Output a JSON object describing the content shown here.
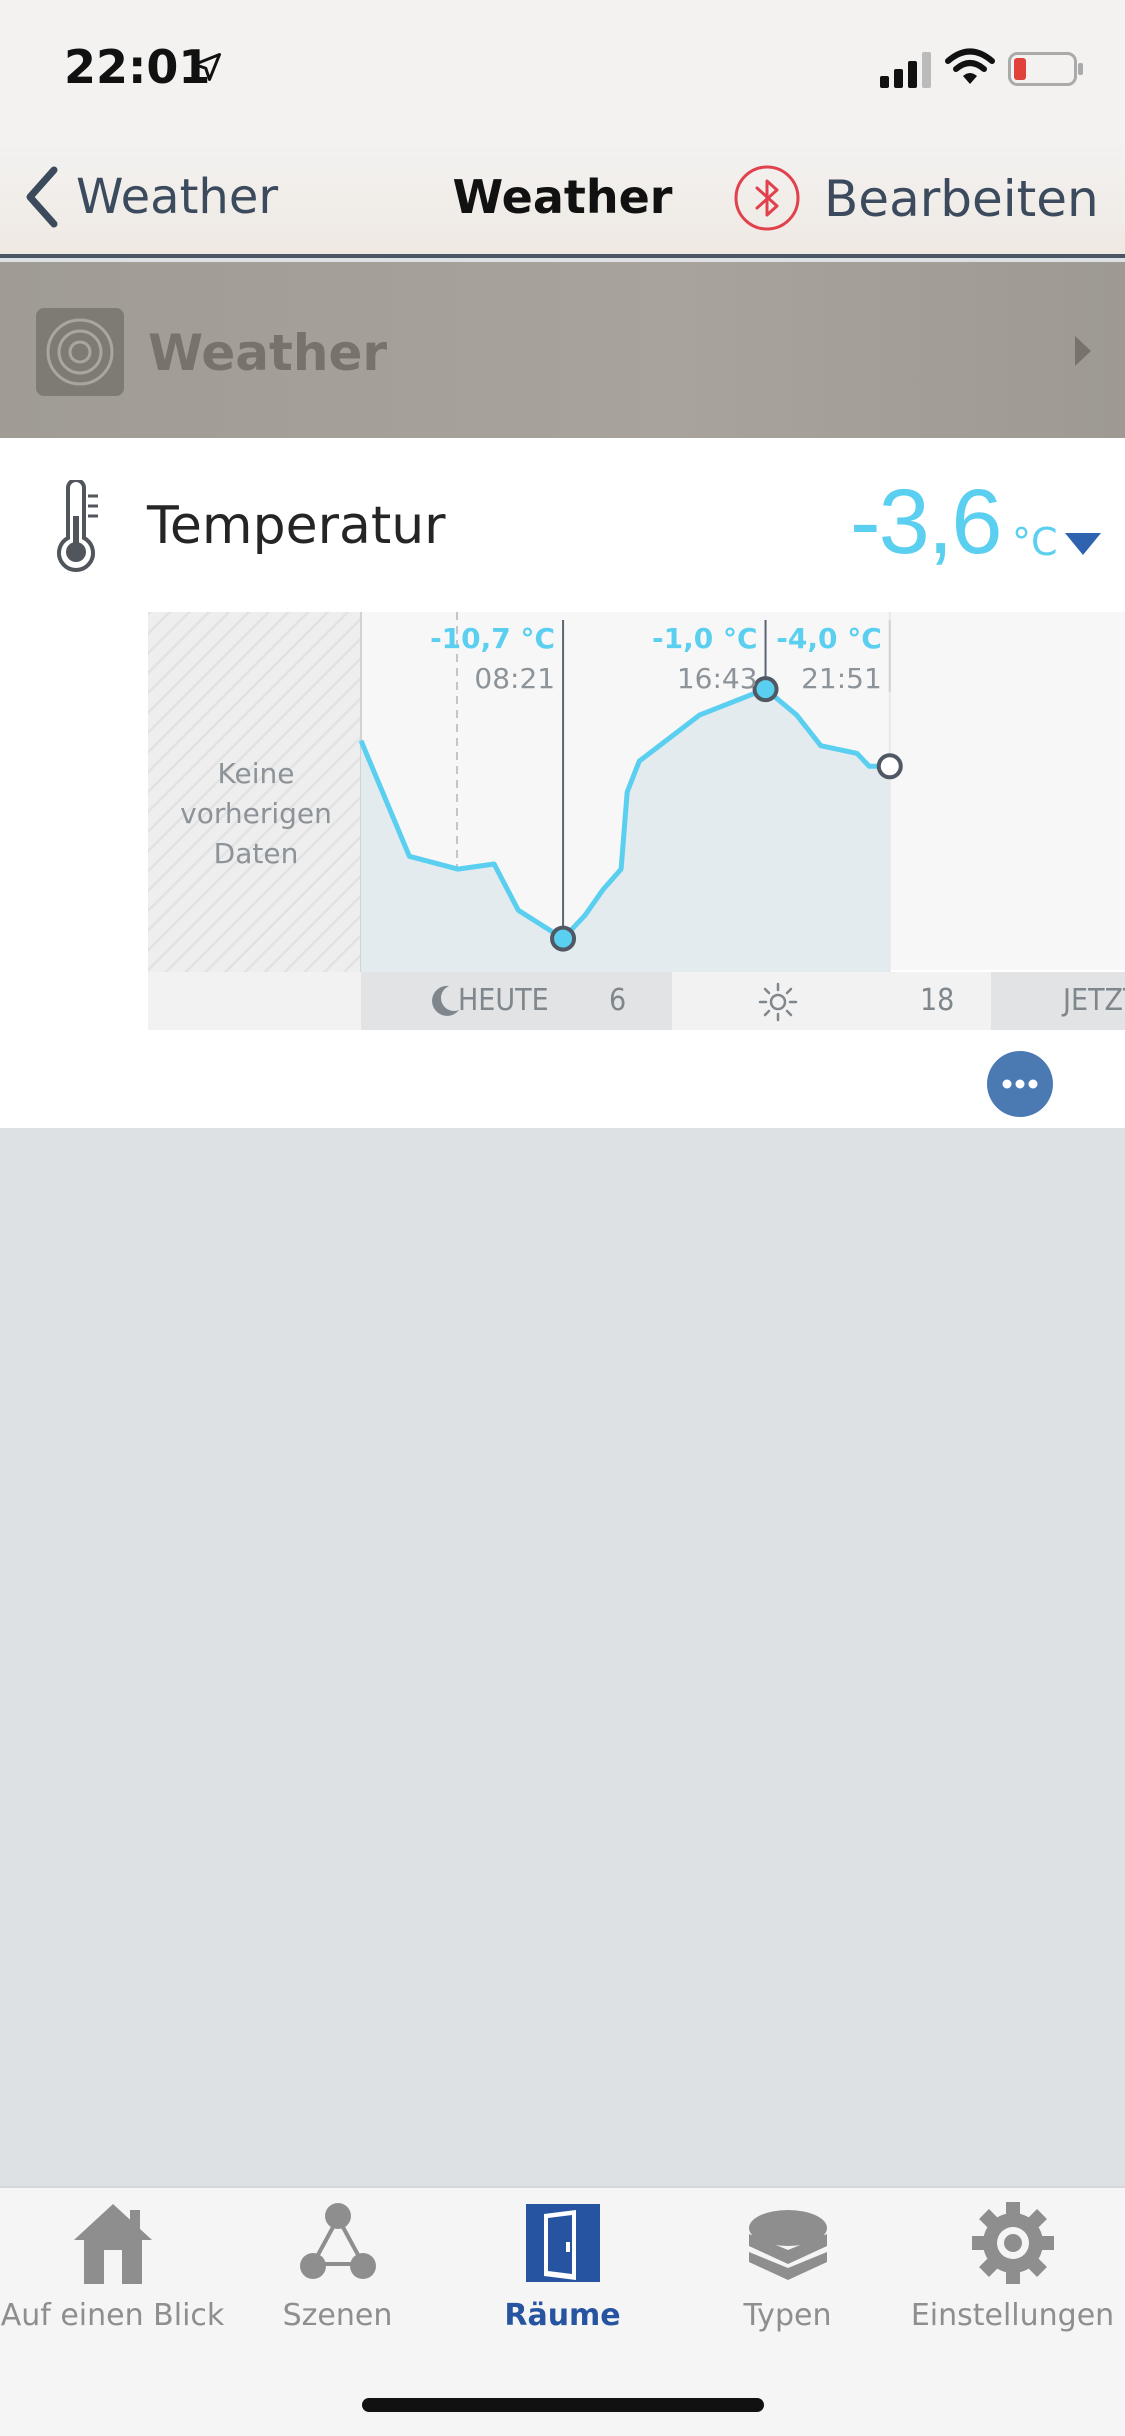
{
  "status_bar": {
    "time": "22:01"
  },
  "nav": {
    "back_label": "Weather",
    "title": "Weather",
    "edit_label": "Bearbeiten",
    "bluetooth_icon": "bluetooth-icon"
  },
  "room": {
    "name": "Weather"
  },
  "sensor": {
    "label": "Temperatur",
    "value": "-3,6",
    "unit": "°C",
    "accent_color": "#5bcfef"
  },
  "chart_data": {
    "type": "line",
    "no_data_label": "Keine vorherigen Daten",
    "annotations": [
      {
        "temp": "-10,7 °C",
        "time": "08:21",
        "kind": "min"
      },
      {
        "temp": "-1,0 °C",
        "time": "16:43",
        "kind": "max"
      },
      {
        "temp": "-4,0 °C",
        "time": "21:51",
        "kind": "current"
      }
    ],
    "x_axis": {
      "labels": [
        "HEUTE",
        "6",
        "18",
        "JETZT"
      ]
    },
    "series": [
      {
        "points": [
          {
            "x": "00:00",
            "y": -3.0
          },
          {
            "x": "02:00",
            "y": -7.5
          },
          {
            "x": "04:00",
            "y": -8.0
          },
          {
            "x": "05:30",
            "y": -7.8
          },
          {
            "x": "06:30",
            "y": -9.6
          },
          {
            "x": "08:21",
            "y": -10.7
          },
          {
            "x": "09:15",
            "y": -9.8
          },
          {
            "x": "10:00",
            "y": -8.8
          },
          {
            "x": "10:45",
            "y": -8.0
          },
          {
            "x": "11:00",
            "y": -5.0
          },
          {
            "x": "11:30",
            "y": -3.8
          },
          {
            "x": "14:00",
            "y": -2.0
          },
          {
            "x": "16:43",
            "y": -1.0
          },
          {
            "x": "18:00",
            "y": -2.0
          },
          {
            "x": "19:00",
            "y": -3.2
          },
          {
            "x": "20:30",
            "y": -3.5
          },
          {
            "x": "21:00",
            "y": -4.0
          },
          {
            "x": "21:51",
            "y": -4.0
          }
        ]
      }
    ],
    "ylim": [
      -12,
      2
    ]
  },
  "tabs": [
    {
      "label": "Auf einen Blick",
      "icon": "home-icon"
    },
    {
      "label": "Szenen",
      "icon": "scenes-icon"
    },
    {
      "label": "Räume",
      "icon": "door-icon",
      "active": true
    },
    {
      "label": "Typen",
      "icon": "layers-icon"
    },
    {
      "label": "Einstellungen",
      "icon": "gear-icon"
    }
  ],
  "colors": {
    "active_tab": "#2754a0",
    "more_button": "#4b79b2"
  }
}
